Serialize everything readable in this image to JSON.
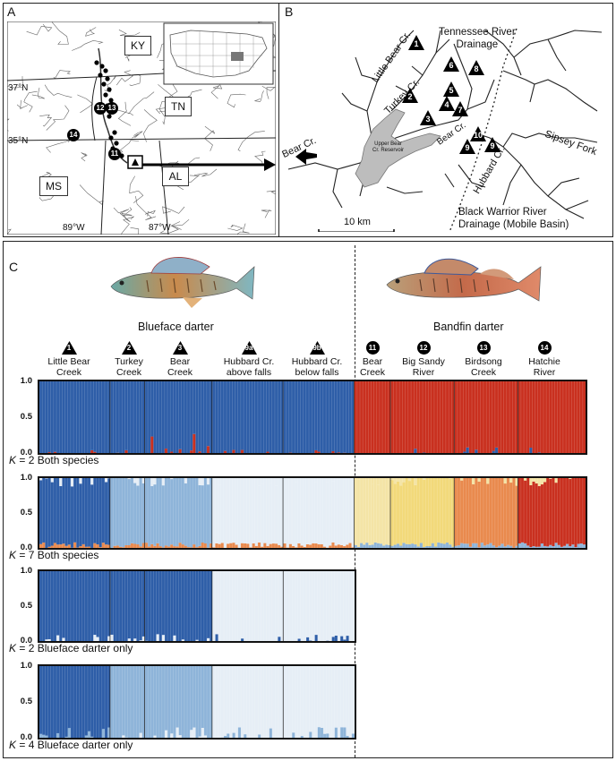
{
  "panel_a": {
    "label": "A",
    "states": [
      "KY",
      "TN",
      "MS",
      "AL"
    ],
    "lat_labels": [
      "37°N",
      "35°N"
    ],
    "lon_labels": [
      "89°W",
      "87°W"
    ],
    "site_labels": [
      "12",
      "13",
      "14",
      "11"
    ]
  },
  "panel_b": {
    "label": "B",
    "tennessee_drainage": "Tennessee River\nDrainage",
    "black_warrior_drainage": "Black Warrior River\nDrainage (Mobile Basin)",
    "streams": [
      "Little Bear Cr.",
      "Turkey Cr.",
      "Bear Cr.",
      "Bear Cr.",
      "Hubbard Cr.",
      "Sipsey Fork"
    ],
    "reservoir": "Upper Bear\nCr. Reservoir",
    "scale": "10 km",
    "site_labels": [
      "1",
      "2",
      "3",
      "4",
      "5",
      "6",
      "7",
      "8",
      "9",
      "10",
      "9"
    ]
  },
  "panel_c": {
    "label": "C",
    "species": [
      "Blueface darter",
      "Bandfin darter"
    ],
    "groups": [
      {
        "num": "1",
        "label": "Little Bear\nCreek",
        "shape": "triangle"
      },
      {
        "num": "2",
        "label": "Turkey\nCreek",
        "shape": "triangle"
      },
      {
        "num": "3",
        "label": "Bear\nCreek",
        "shape": "triangle"
      },
      {
        "num": "9a",
        "label": "Hubbard Cr.\nabove falls",
        "shape": "triangle"
      },
      {
        "num": "9b",
        "label": "Hubbard Cr.\nbelow falls",
        "shape": "triangle"
      },
      {
        "num": "11",
        "label": "Bear\nCreek",
        "shape": "circle"
      },
      {
        "num": "12",
        "label": "Big Sandy\nRiver",
        "shape": "circle"
      },
      {
        "num": "13",
        "label": "Birdsong\nCreek",
        "shape": "circle"
      },
      {
        "num": "14",
        "label": "Hatchie\nRiver",
        "shape": "circle"
      }
    ],
    "y_ticks": [
      "1.0",
      "0.5",
      "0.0"
    ],
    "plots": [
      {
        "title_k": "K",
        "title_rest": " = 2 Both species"
      },
      {
        "title_k": "K",
        "title_rest": " = 7 Both species"
      },
      {
        "title_k": "K",
        "title_rest": " = 2 Blueface darter only"
      },
      {
        "title_k": "K",
        "title_rest": " = 4 Blueface darter only"
      }
    ]
  },
  "chart_data": {
    "type": "bar",
    "ylim": [
      0,
      1
    ],
    "populations": [
      "Little Bear Creek",
      "Turkey Creek",
      "Bear Creek",
      "Hubbard Cr. above falls",
      "Hubbard Cr. below falls",
      "Bear Creek",
      "Big Sandy River",
      "Birdsong Creek",
      "Hatchie River"
    ],
    "plots": [
      {
        "K": 2,
        "dominant_cluster": [
          "blue",
          "blue",
          "blue",
          "blue",
          "blue",
          "red",
          "red",
          "red",
          "red"
        ]
      },
      {
        "K": 7,
        "dominant_cluster": [
          "dark blue",
          "light blue",
          "light blue",
          "pale blue",
          "pale blue",
          "pale yellow",
          "yellow",
          "orange",
          "red"
        ]
      },
      {
        "K": 2,
        "dominant_cluster": [
          "dark blue",
          "dark blue",
          "dark blue",
          "pale blue",
          "pale blue"
        ]
      },
      {
        "K": 4,
        "dominant_cluster": [
          "dark blue",
          "light blue",
          "light blue",
          "pale blue",
          "pale blue"
        ]
      }
    ],
    "colors": {
      "blue": "#2e5ea8",
      "red": "#c9301f",
      "lightblue": "#8eb4d9",
      "paleblue": "#e6eef6",
      "paleyellow": "#f4e4a6",
      "yellow": "#f2d97a",
      "orange": "#e98a4e"
    }
  }
}
